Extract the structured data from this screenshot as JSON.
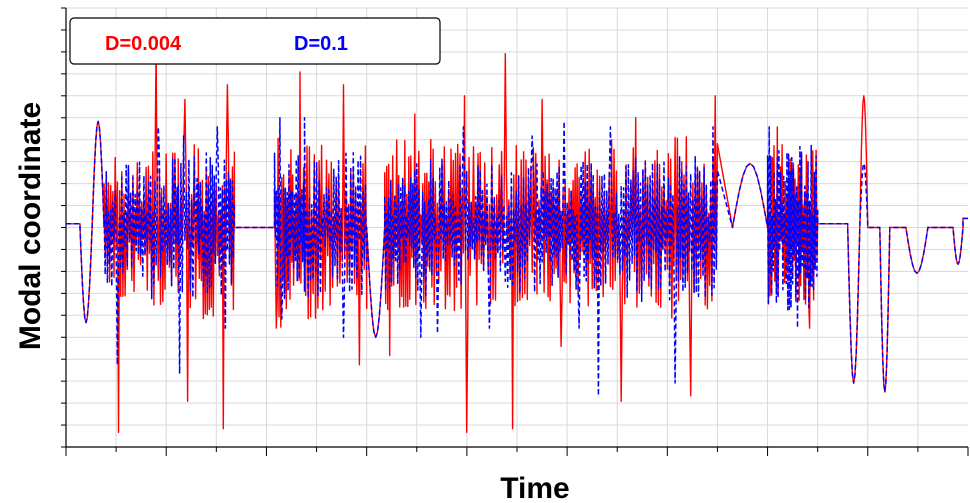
{
  "chart_data": {
    "type": "line",
    "title": "",
    "xlabel": "Time",
    "ylabel": "Modal coordinate",
    "xlim": [
      0,
      900
    ],
    "ylim": [
      -1.2,
      1.2
    ],
    "grid": true,
    "legend_position": "top-left",
    "tick_labels_shown": false,
    "series": [
      {
        "name": "D=0.004",
        "color": "#ff0000",
        "style": "solid",
        "segments": [
          {
            "type": "flat",
            "x0": 0,
            "x1": 14,
            "level": 0.02
          },
          {
            "type": "dip",
            "x0": 14,
            "x1": 26,
            "level": -0.52
          },
          {
            "type": "bump",
            "x0": 26,
            "x1": 38,
            "level": 0.58
          },
          {
            "type": "noise",
            "x0": 38,
            "x1": 112,
            "amp": 0.42,
            "peak_up": 0.98,
            "peak_down": -1.12,
            "period": 1.1
          },
          {
            "type": "noise",
            "x0": 112,
            "x1": 132,
            "amp": 0.45,
            "peak_up": 0.7,
            "peak_down": -0.95,
            "period": 1.3
          },
          {
            "type": "noise",
            "x0": 132,
            "x1": 168,
            "amp": 0.5,
            "peak_up": 0.78,
            "peak_down": -1.1,
            "period": 1.0
          },
          {
            "type": "flat",
            "x0": 168,
            "x1": 208,
            "level": 0.0
          },
          {
            "type": "noise",
            "x0": 208,
            "x1": 238,
            "amp": 0.55,
            "peak_up": 0.85,
            "peak_down": -0.55,
            "period": 0.9
          },
          {
            "type": "noise",
            "x0": 238,
            "x1": 300,
            "amp": 0.5,
            "peak_up": 0.78,
            "peak_down": -0.75,
            "period": 1.2
          },
          {
            "type": "dip",
            "x0": 300,
            "x1": 318,
            "level": -0.6
          },
          {
            "type": "noise",
            "x0": 318,
            "x1": 364,
            "amp": 0.48,
            "peak_up": 0.62,
            "peak_down": -0.7,
            "period": 1.0
          },
          {
            "type": "noise",
            "x0": 364,
            "x1": 420,
            "amp": 0.45,
            "peak_up": 0.72,
            "peak_down": -1.12,
            "period": 1.1
          },
          {
            "type": "noise",
            "x0": 420,
            "x1": 470,
            "amp": 0.45,
            "peak_up": 0.95,
            "peak_down": -1.1,
            "period": 1.2
          },
          {
            "type": "noise",
            "x0": 470,
            "x1": 530,
            "amp": 0.42,
            "peak_up": 0.7,
            "peak_down": -0.65,
            "period": 1.0
          },
          {
            "type": "noise",
            "x0": 530,
            "x1": 590,
            "amp": 0.5,
            "peak_up": 0.6,
            "peak_down": -0.95,
            "period": 1.2
          },
          {
            "type": "noise",
            "x0": 590,
            "x1": 650,
            "amp": 0.5,
            "peak_up": 0.72,
            "peak_down": -0.92,
            "period": 1.1
          },
          {
            "type": "bump",
            "x0": 665,
            "x1": 700,
            "level": 0.35
          },
          {
            "type": "noise",
            "x0": 700,
            "x1": 750,
            "amp": 0.45,
            "peak_up": 0.55,
            "peak_down": -0.55,
            "period": 0.8
          },
          {
            "type": "flat",
            "x0": 750,
            "x1": 780,
            "level": 0.02
          },
          {
            "type": "dip",
            "x0": 780,
            "x1": 792,
            "level": -0.85
          },
          {
            "type": "bump",
            "x0": 792,
            "x1": 800,
            "level": 0.72
          },
          {
            "type": "dip",
            "x0": 812,
            "x1": 822,
            "level": -0.9
          },
          {
            "type": "flat",
            "x0": 822,
            "x1": 838,
            "level": 0.0
          },
          {
            "type": "dip",
            "x0": 838,
            "x1": 860,
            "level": -0.25
          },
          {
            "type": "flat",
            "x0": 860,
            "x1": 885,
            "level": 0.0
          },
          {
            "type": "dip",
            "x0": 885,
            "x1": 895,
            "level": -0.2
          },
          {
            "type": "flat",
            "x0": 895,
            "x1": 900,
            "level": 0.05
          }
        ]
      },
      {
        "name": "D=0.1",
        "color": "#0000ff",
        "style": "dashed",
        "segments": [
          {
            "type": "flat",
            "x0": 0,
            "x1": 14,
            "level": 0.02
          },
          {
            "type": "dip",
            "x0": 14,
            "x1": 26,
            "level": -0.52
          },
          {
            "type": "bump",
            "x0": 26,
            "x1": 38,
            "level": 0.58
          },
          {
            "type": "noise",
            "x0": 38,
            "x1": 112,
            "amp": 0.38,
            "peak_up": 0.55,
            "peak_down": -0.75,
            "period": 1.1
          },
          {
            "type": "noise",
            "x0": 112,
            "x1": 132,
            "amp": 0.38,
            "peak_up": 0.5,
            "peak_down": -0.8,
            "period": 1.3
          },
          {
            "type": "noise",
            "x0": 132,
            "x1": 168,
            "amp": 0.4,
            "peak_up": 0.55,
            "peak_down": -0.55,
            "period": 1.0
          },
          {
            "type": "flat",
            "x0": 168,
            "x1": 208,
            "level": 0.0
          },
          {
            "type": "noise",
            "x0": 208,
            "x1": 238,
            "amp": 0.4,
            "peak_up": 0.6,
            "peak_down": -0.5,
            "period": 0.9
          },
          {
            "type": "noise",
            "x0": 238,
            "x1": 300,
            "amp": 0.4,
            "peak_up": 0.6,
            "peak_down": -0.6,
            "period": 1.2
          },
          {
            "type": "dip",
            "x0": 300,
            "x1": 318,
            "level": -0.6
          },
          {
            "type": "noise",
            "x0": 318,
            "x1": 364,
            "amp": 0.38,
            "peak_up": 0.5,
            "peak_down": -0.6,
            "period": 1.0
          },
          {
            "type": "noise",
            "x0": 364,
            "x1": 420,
            "amp": 0.36,
            "peak_up": 0.55,
            "peak_down": -0.58,
            "period": 1.1
          },
          {
            "type": "noise",
            "x0": 420,
            "x1": 470,
            "amp": 0.36,
            "peak_up": 0.5,
            "peak_down": -0.55,
            "period": 1.2
          },
          {
            "type": "noise",
            "x0": 470,
            "x1": 530,
            "amp": 0.35,
            "peak_up": 0.58,
            "peak_down": -0.55,
            "period": 1.0
          },
          {
            "type": "noise",
            "x0": 530,
            "x1": 590,
            "amp": 0.4,
            "peak_up": 0.55,
            "peak_down": -0.92,
            "period": 1.2
          },
          {
            "type": "noise",
            "x0": 590,
            "x1": 650,
            "amp": 0.4,
            "peak_up": 0.55,
            "peak_down": -0.85,
            "period": 1.1
          },
          {
            "type": "bump",
            "x0": 665,
            "x1": 700,
            "level": 0.35
          },
          {
            "type": "noise",
            "x0": 700,
            "x1": 750,
            "amp": 0.45,
            "peak_up": 0.55,
            "peak_down": -0.55,
            "period": 0.8
          },
          {
            "type": "flat",
            "x0": 750,
            "x1": 780,
            "level": 0.02
          },
          {
            "type": "dip",
            "x0": 780,
            "x1": 792,
            "level": -0.85
          },
          {
            "type": "bump",
            "x0": 792,
            "x1": 800,
            "level": 0.35
          },
          {
            "type": "dip",
            "x0": 812,
            "x1": 822,
            "level": -0.9
          },
          {
            "type": "flat",
            "x0": 822,
            "x1": 838,
            "level": 0.0
          },
          {
            "type": "dip",
            "x0": 838,
            "x1": 860,
            "level": -0.25
          },
          {
            "type": "flat",
            "x0": 860,
            "x1": 885,
            "level": 0.0
          },
          {
            "type": "dip",
            "x0": 885,
            "x1": 895,
            "level": -0.2
          },
          {
            "type": "flat",
            "x0": 895,
            "x1": 900,
            "level": 0.05
          }
        ]
      }
    ]
  }
}
